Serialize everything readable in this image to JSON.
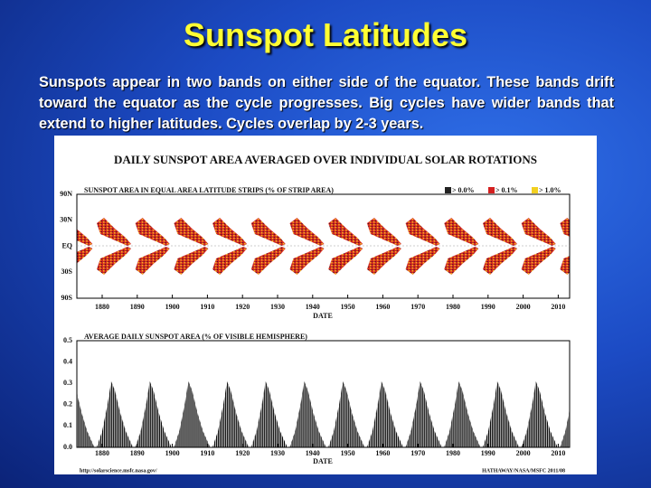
{
  "slide": {
    "title": "Sunspot Latitudes",
    "body": "Sunspots appear in two bands on either side of the equator. These bands drift toward the equator as the cycle progresses. Big cycles have wider bands that extend to higher latitudes. Cycles overlap by 2-3 years."
  },
  "figure": {
    "title": "DAILY SUNSPOT AREA AVERAGED OVER INDIVIDUAL SOLAR ROTATIONS",
    "top_panel": {
      "title": "SUNSPOT AREA IN EQUAL AREA LATITUDE STRIPS (% OF STRIP AREA)",
      "legend": [
        "> 0.0%",
        "> 0.1%",
        "> 1.0%"
      ],
      "y_labels": [
        "90N",
        "30N",
        "EQ",
        "30S",
        "90S"
      ],
      "x_labels": [
        "1880",
        "1890",
        "1900",
        "1910",
        "1920",
        "1930",
        "1940",
        "1950",
        "1960",
        "1970",
        "1980",
        "1990",
        "2000",
        "2010"
      ],
      "x_axis_label": "DATE"
    },
    "bottom_panel": {
      "title": "AVERAGE DAILY SUNSPOT AREA (% OF VISIBLE HEMISPHERE)",
      "y_labels": [
        "0.5",
        "0.4",
        "0.3",
        "0.2",
        "0.1",
        "0.0"
      ],
      "x_labels": [
        "1880",
        "1890",
        "1900",
        "1910",
        "1920",
        "1930",
        "1940",
        "1950",
        "1960",
        "1970",
        "1980",
        "1990",
        "2000",
        "2010"
      ],
      "x_axis_label": "DATE"
    },
    "credits": {
      "left": "http://solarscience.msfc.nasa.gov/",
      "right": "HATHAWAY/NASA/MSFC 2011/08"
    }
  }
}
